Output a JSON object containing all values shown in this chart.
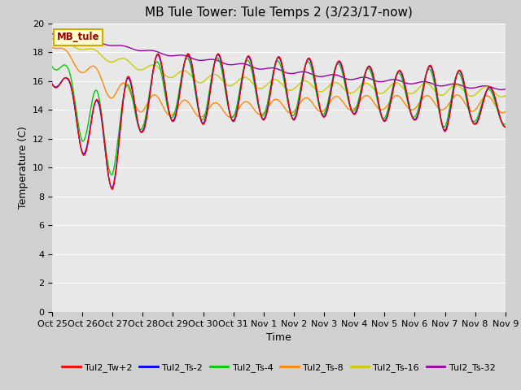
{
  "title": "MB Tule Tower: Tule Temps 2 (3/23/17-now)",
  "xlabel": "Time",
  "ylabel": "Temperature (C)",
  "ylim": [
    0,
    20
  ],
  "yticks": [
    0,
    2,
    4,
    6,
    8,
    10,
    12,
    14,
    16,
    18,
    20
  ],
  "fig_bg": "#d0d0d0",
  "plot_bg": "#e8e8e8",
  "legend_label": "MB_tule",
  "series_colors": {
    "Tul2_Tw+2": "#ff0000",
    "Tul2_Ts-2": "#0000ff",
    "Tul2_Ts-4": "#00cc00",
    "Tul2_Ts-8": "#ff8800",
    "Tul2_Ts-16": "#cccc00",
    "Tul2_Ts-32": "#9900aa"
  },
  "x_tick_labels": [
    "Oct 25",
    "Oct 26",
    "Oct 27",
    "Oct 28",
    "Oct 29",
    "Oct 30",
    "Oct 31",
    "Nov 1",
    "Nov 2",
    "Nov 3",
    "Nov 4",
    "Nov 5",
    "Nov 6",
    "Nov 7",
    "Nov 8",
    "Nov 9"
  ],
  "grid_color": "#ffffff",
  "title_fontsize": 11,
  "tick_fontsize": 8,
  "label_fontsize": 9
}
